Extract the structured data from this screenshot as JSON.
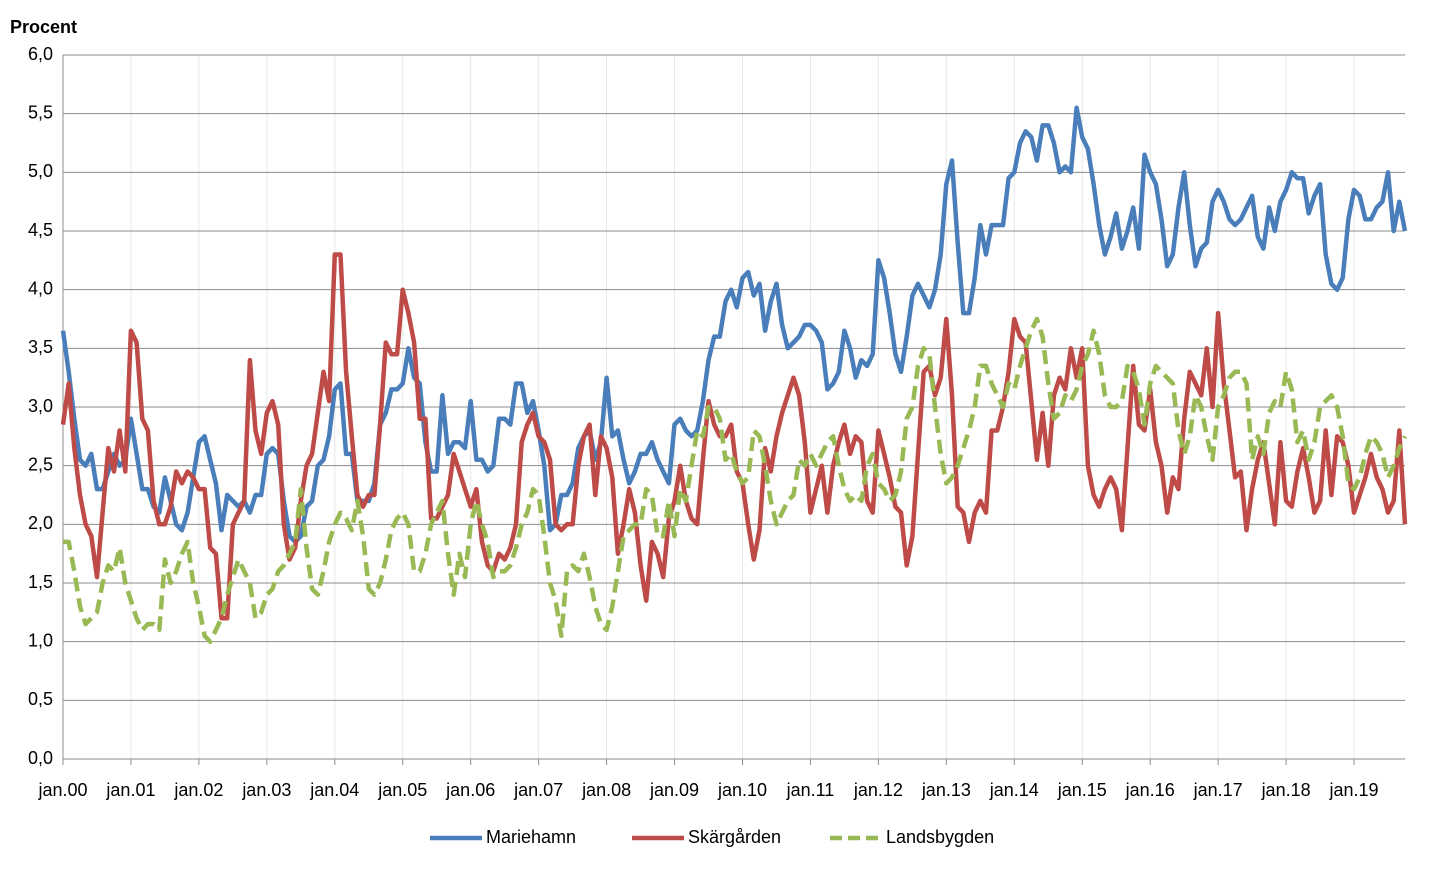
{
  "chart_data": {
    "type": "line",
    "y_label": "Procent",
    "categories": [
      "jan.00",
      null,
      null,
      null,
      null,
      null,
      null,
      null,
      null,
      null,
      null,
      null,
      "jan.01",
      null,
      null,
      null,
      null,
      null,
      null,
      null,
      null,
      null,
      null,
      null,
      "jan.02",
      null,
      null,
      null,
      null,
      null,
      null,
      null,
      null,
      null,
      null,
      null,
      "jan.03",
      null,
      null,
      null,
      null,
      null,
      null,
      null,
      null,
      null,
      null,
      null,
      "jan.04",
      null,
      null,
      null,
      null,
      null,
      null,
      null,
      null,
      null,
      null,
      null,
      "jan.05",
      null,
      null,
      null,
      null,
      null,
      null,
      null,
      null,
      null,
      null,
      null,
      "jan.06",
      null,
      null,
      null,
      null,
      null,
      null,
      null,
      null,
      null,
      null,
      null,
      "jan.07",
      null,
      null,
      null,
      null,
      null,
      null,
      null,
      null,
      null,
      null,
      null,
      "jan.08",
      null,
      null,
      null,
      null,
      null,
      null,
      null,
      null,
      null,
      null,
      null,
      "jan.09",
      null,
      null,
      null,
      null,
      null,
      null,
      null,
      null,
      null,
      null,
      null,
      "jan.10",
      null,
      null,
      null,
      null,
      null,
      null,
      null,
      null,
      null,
      null,
      null,
      "jan.11",
      null,
      null,
      null,
      null,
      null,
      null,
      null,
      null,
      null,
      null,
      null,
      "jan.12",
      null,
      null,
      null,
      null,
      null,
      null,
      null,
      null,
      null,
      null,
      null,
      "jan.13",
      null,
      null,
      null,
      null,
      null,
      null,
      null,
      null,
      null,
      null,
      null,
      "jan.14",
      null,
      null,
      null,
      null,
      null,
      null,
      null,
      null,
      null,
      null,
      null,
      "jan.15",
      null,
      null,
      null,
      null,
      null,
      null,
      null,
      null,
      null,
      null,
      null,
      "jan.16",
      null,
      null,
      null,
      null,
      null,
      null,
      null,
      null,
      null,
      null,
      null,
      "jan.17",
      null,
      null,
      null,
      null,
      null,
      null,
      null,
      null,
      null,
      null,
      null,
      "jan.18",
      null,
      null,
      null,
      null,
      null,
      null,
      null,
      null,
      null,
      null,
      null,
      "jan.19",
      null,
      null,
      null,
      null,
      null,
      null,
      null,
      null,
      null
    ],
    "series": [
      {
        "name": "Mariehamn",
        "color": "#4a7ebb",
        "dash": false,
        "values": [
          3.65,
          3.3,
          2.9,
          2.55,
          2.5,
          2.6,
          2.3,
          2.3,
          2.45,
          2.6,
          2.5,
          2.55,
          2.9,
          2.6,
          2.3,
          2.3,
          2.15,
          2.1,
          2.4,
          2.2,
          2.0,
          1.95,
          2.1,
          2.4,
          2.7,
          2.75,
          2.55,
          2.35,
          1.95,
          2.25,
          2.2,
          2.15,
          2.2,
          2.1,
          2.25,
          2.25,
          2.6,
          2.65,
          2.6,
          2.2,
          1.9,
          1.85,
          1.9,
          2.15,
          2.2,
          2.5,
          2.55,
          2.75,
          3.15,
          3.2,
          2.6,
          2.6,
          2.2,
          2.2,
          2.2,
          2.35,
          2.85,
          2.95,
          3.15,
          3.15,
          3.2,
          3.5,
          3.25,
          3.2,
          2.7,
          2.45,
          2.45,
          3.1,
          2.6,
          2.7,
          2.7,
          2.65,
          3.05,
          2.55,
          2.55,
          2.45,
          2.5,
          2.9,
          2.9,
          2.85,
          3.2,
          3.2,
          2.95,
          3.05,
          2.8,
          2.5,
          1.95,
          2.0,
          2.25,
          2.25,
          2.35,
          2.65,
          2.75,
          2.8,
          2.55,
          2.7,
          3.25,
          2.75,
          2.8,
          2.55,
          2.35,
          2.45,
          2.6,
          2.6,
          2.7,
          2.55,
          2.45,
          2.35,
          2.85,
          2.9,
          2.8,
          2.75,
          2.8,
          3.05,
          3.4,
          3.6,
          3.6,
          3.9,
          4.0,
          3.85,
          4.1,
          4.15,
          3.95,
          4.05,
          3.65,
          3.9,
          4.05,
          3.7,
          3.5,
          3.55,
          3.6,
          3.7,
          3.7,
          3.65,
          3.55,
          3.15,
          3.2,
          3.3,
          3.65,
          3.5,
          3.25,
          3.4,
          3.35,
          3.45,
          4.25,
          4.1,
          3.8,
          3.45,
          3.3,
          3.6,
          3.95,
          4.05,
          3.95,
          3.85,
          4.0,
          4.3,
          4.9,
          5.1,
          4.4,
          3.8,
          3.8,
          4.1,
          4.55,
          4.3,
          4.55,
          4.55,
          4.55,
          4.95,
          5.0,
          5.25,
          5.35,
          5.3,
          5.1,
          5.4,
          5.4,
          5.25,
          5.0,
          5.05,
          5.0,
          5.55,
          5.3,
          5.2,
          4.9,
          4.55,
          4.3,
          4.45,
          4.65,
          4.35,
          4.5,
          4.7,
          4.35,
          5.15,
          5.0,
          4.9,
          4.6,
          4.2,
          4.3,
          4.7,
          5.0,
          4.55,
          4.2,
          4.35,
          4.4,
          4.75,
          4.85,
          4.75,
          4.6,
          4.55,
          4.6,
          4.7,
          4.8,
          4.45,
          4.35,
          4.7,
          4.5,
          4.75,
          4.85,
          5.0,
          4.95,
          4.95,
          4.65,
          4.8,
          4.9,
          4.3,
          4.05,
          4.0,
          4.1,
          4.6,
          4.85,
          4.8,
          4.6,
          4.6,
          4.7,
          4.75,
          5.0,
          4.5,
          4.75,
          4.5
        ]
      },
      {
        "name": "Skärgården",
        "color": "#be4b48",
        "dash": false,
        "values": [
          2.85,
          3.2,
          2.65,
          2.25,
          2.0,
          1.9,
          1.55,
          2.1,
          2.65,
          2.45,
          2.8,
          2.45,
          3.65,
          3.55,
          2.9,
          2.8,
          2.2,
          2.0,
          2.0,
          2.15,
          2.45,
          2.35,
          2.45,
          2.4,
          2.3,
          2.3,
          1.8,
          1.75,
          1.2,
          1.2,
          2.0,
          2.1,
          2.2,
          3.4,
          2.8,
          2.6,
          2.95,
          3.05,
          2.85,
          2.0,
          1.7,
          1.8,
          2.2,
          2.5,
          2.6,
          2.95,
          3.3,
          3.05,
          4.3,
          4.3,
          3.3,
          2.75,
          2.25,
          2.15,
          2.25,
          2.25,
          2.85,
          3.55,
          3.45,
          3.45,
          4.0,
          3.8,
          3.55,
          2.9,
          2.9,
          2.05,
          2.05,
          2.15,
          2.25,
          2.6,
          2.45,
          2.3,
          2.15,
          2.3,
          1.85,
          1.65,
          1.6,
          1.75,
          1.7,
          1.8,
          2.0,
          2.7,
          2.85,
          2.95,
          2.75,
          2.7,
          2.55,
          2.0,
          1.95,
          2.0,
          2.0,
          2.5,
          2.75,
          2.85,
          2.25,
          2.75,
          2.65,
          2.4,
          1.75,
          2.0,
          2.3,
          2.1,
          1.65,
          1.35,
          1.85,
          1.75,
          1.55,
          2.05,
          2.2,
          2.5,
          2.2,
          2.05,
          2.0,
          2.55,
          3.05,
          2.85,
          2.75,
          2.75,
          2.85,
          2.45,
          2.35,
          2.0,
          1.7,
          1.95,
          2.65,
          2.45,
          2.75,
          2.95,
          3.1,
          3.25,
          3.1,
          2.7,
          2.1,
          2.3,
          2.5,
          2.1,
          2.5,
          2.7,
          2.85,
          2.6,
          2.75,
          2.7,
          2.2,
          2.1,
          2.8,
          2.6,
          2.4,
          2.15,
          2.1,
          1.65,
          1.9,
          2.6,
          3.3,
          3.35,
          3.1,
          3.25,
          3.75,
          3.1,
          2.15,
          2.1,
          1.85,
          2.1,
          2.2,
          2.1,
          2.8,
          2.8,
          3.0,
          3.3,
          3.75,
          3.6,
          3.55,
          3.05,
          2.55,
          2.95,
          2.5,
          3.1,
          3.25,
          3.15,
          3.5,
          3.25,
          3.5,
          2.5,
          2.25,
          2.15,
          2.3,
          2.4,
          2.3,
          1.95,
          2.65,
          3.35,
          2.85,
          2.8,
          3.15,
          2.7,
          2.5,
          2.1,
          2.4,
          2.3,
          2.9,
          3.3,
          3.2,
          3.1,
          3.5,
          3.0,
          3.8,
          3.2,
          2.8,
          2.4,
          2.45,
          1.95,
          2.3,
          2.55,
          2.7,
          2.35,
          2.0,
          2.7,
          2.2,
          2.15,
          2.45,
          2.65,
          2.4,
          2.1,
          2.2,
          2.8,
          2.25,
          2.75,
          2.7,
          2.5,
          2.1,
          2.25,
          2.4,
          2.6,
          2.4,
          2.3,
          2.1,
          2.2,
          2.8,
          2.0
        ]
      },
      {
        "name": "Landsbygden",
        "color": "#98b954",
        "dash": true,
        "values": [
          1.85,
          1.85,
          1.6,
          1.3,
          1.15,
          1.2,
          1.25,
          1.5,
          1.65,
          1.6,
          1.8,
          1.5,
          1.35,
          1.2,
          1.1,
          1.15,
          1.15,
          1.1,
          1.7,
          1.5,
          1.6,
          1.75,
          1.85,
          1.5,
          1.3,
          1.05,
          1.0,
          1.1,
          1.2,
          1.4,
          1.55,
          1.7,
          1.6,
          1.5,
          1.2,
          1.25,
          1.4,
          1.45,
          1.6,
          1.65,
          1.75,
          1.85,
          2.3,
          1.8,
          1.45,
          1.4,
          1.6,
          1.85,
          2.0,
          2.1,
          2.05,
          1.95,
          2.2,
          1.9,
          1.45,
          1.4,
          1.5,
          1.7,
          1.95,
          2.05,
          2.1,
          2.0,
          1.6,
          1.6,
          1.75,
          2.0,
          2.1,
          2.2,
          1.75,
          1.4,
          1.75,
          1.55,
          2.0,
          2.2,
          2.0,
          1.85,
          1.55,
          1.6,
          1.6,
          1.65,
          1.8,
          2.0,
          2.1,
          2.3,
          2.25,
          1.9,
          1.5,
          1.35,
          1.05,
          1.6,
          1.65,
          1.6,
          1.75,
          1.55,
          1.3,
          1.15,
          1.1,
          1.3,
          1.6,
          1.9,
          1.95,
          2.0,
          2.0,
          2.3,
          2.25,
          1.9,
          1.9,
          2.2,
          1.9,
          2.3,
          2.2,
          2.5,
          2.8,
          2.75,
          3.0,
          3.0,
          2.9,
          2.55,
          2.6,
          2.45,
          2.35,
          2.4,
          2.8,
          2.75,
          2.5,
          2.2,
          2.0,
          2.1,
          2.2,
          2.25,
          2.55,
          2.5,
          2.6,
          2.5,
          2.6,
          2.7,
          2.75,
          2.5,
          2.3,
          2.2,
          2.25,
          2.2,
          2.5,
          2.6,
          2.35,
          2.3,
          2.2,
          2.25,
          2.45,
          2.9,
          3.0,
          3.35,
          3.5,
          3.45,
          3.0,
          2.6,
          2.35,
          2.4,
          2.5,
          2.65,
          2.8,
          3.0,
          3.35,
          3.35,
          3.2,
          3.1,
          3.0,
          3.2,
          3.15,
          3.35,
          3.5,
          3.65,
          3.75,
          3.6,
          3.2,
          2.9,
          2.95,
          3.1,
          3.05,
          3.15,
          3.35,
          3.45,
          3.65,
          3.45,
          3.1,
          3.0,
          3.0,
          3.05,
          3.35,
          3.3,
          3.15,
          2.85,
          3.2,
          3.35,
          3.3,
          3.25,
          3.2,
          2.8,
          2.6,
          2.75,
          3.1,
          3.0,
          2.75,
          2.55,
          3.0,
          3.1,
          3.25,
          3.3,
          3.3,
          3.2,
          2.55,
          2.75,
          2.6,
          2.95,
          3.05,
          3.0,
          3.3,
          3.15,
          2.7,
          2.8,
          2.55,
          2.7,
          3.0,
          3.05,
          3.1,
          3.0,
          2.75,
          2.35,
          2.3,
          2.4,
          2.6,
          2.75,
          2.7,
          2.6,
          2.4,
          2.5,
          2.65,
          2.75
        ]
      }
    ],
    "ylim": [
      0,
      6
    ],
    "yticks": [
      {
        "value": 0,
        "label": "0,0"
      },
      {
        "value": 0.5,
        "label": "0,5"
      },
      {
        "value": 1,
        "label": "1,0"
      },
      {
        "value": 1.5,
        "label": "1,5"
      },
      {
        "value": 2,
        "label": "2,0"
      },
      {
        "value": 2.5,
        "label": "2,5"
      },
      {
        "value": 3,
        "label": "3,0"
      },
      {
        "value": 3.5,
        "label": "3,5"
      },
      {
        "value": 4,
        "label": "4,0"
      },
      {
        "value": 4.5,
        "label": "4,5"
      },
      {
        "value": 5,
        "label": "5,0"
      },
      {
        "value": 5.5,
        "label": "5,5"
      },
      {
        "value": 6,
        "label": "6,0"
      }
    ],
    "grid": true,
    "legend": "bottom"
  }
}
